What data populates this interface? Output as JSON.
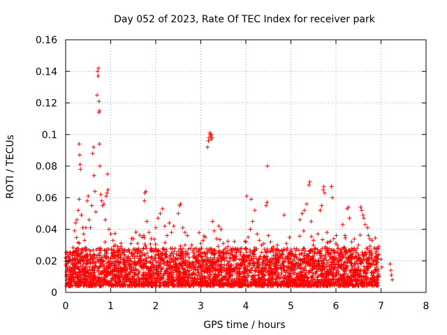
{
  "chart_data": {
    "type": "scatter",
    "title": "Day 052 of 2023, Rate Of TEC Index for receiver park",
    "xlabel": "GPS time / hours",
    "ylabel": "ROTI / TECUs",
    "xlim": [
      0,
      8
    ],
    "ylim": [
      0,
      0.16
    ],
    "xticks": [
      "0",
      "1",
      "2",
      "3",
      "4",
      "5",
      "6",
      "7",
      "8"
    ],
    "yticks": [
      "0",
      "0.02",
      "0.04",
      "0.06",
      "0.08",
      "0.1",
      "0.12",
      "0.14",
      "0.16"
    ],
    "grid": true,
    "marker": "plus",
    "color": "#ff0000",
    "x_data_range": [
      0.0,
      7.25
    ],
    "series": [
      {
        "points": [
          [
            0.05,
            0.019
          ],
          [
            0.08,
            0.014
          ],
          [
            0.1,
            0.021
          ],
          [
            0.12,
            0.013
          ],
          [
            0.15,
            0.025
          ],
          [
            0.18,
            0.016
          ],
          [
            0.2,
            0.039
          ],
          [
            0.22,
            0.044
          ],
          [
            0.25,
            0.046
          ],
          [
            0.28,
            0.052
          ],
          [
            0.3,
            0.059
          ],
          [
            0.3,
            0.094
          ],
          [
            0.31,
            0.087
          ],
          [
            0.32,
            0.081
          ],
          [
            0.33,
            0.078
          ],
          [
            0.35,
            0.049
          ],
          [
            0.38,
            0.041
          ],
          [
            0.4,
            0.037
          ],
          [
            0.42,
            0.033
          ],
          [
            0.45,
            0.041
          ],
          [
            0.48,
            0.058
          ],
          [
            0.5,
            0.061
          ],
          [
            0.52,
            0.046
          ],
          [
            0.55,
            0.041
          ],
          [
            0.58,
            0.055
          ],
          [
            0.6,
            0.088
          ],
          [
            0.62,
            0.092
          ],
          [
            0.63,
            0.074
          ],
          [
            0.65,
            0.064
          ],
          [
            0.67,
            0.051
          ],
          [
            0.7,
            0.125
          ],
          [
            0.71,
            0.14
          ],
          [
            0.72,
            0.137
          ],
          [
            0.73,
            0.142
          ],
          [
            0.74,
            0.121
          ],
          [
            0.74,
            0.114
          ],
          [
            0.75,
            0.115
          ],
          [
            0.75,
            0.094
          ],
          [
            0.76,
            0.08
          ],
          [
            0.78,
            0.062
          ],
          [
            0.8,
            0.058
          ],
          [
            0.82,
            0.055
          ],
          [
            0.85,
            0.056
          ],
          [
            0.88,
            0.046
          ],
          [
            0.9,
            0.061
          ],
          [
            0.92,
            0.063
          ],
          [
            0.93,
            0.075
          ],
          [
            0.94,
            0.065
          ],
          [
            0.96,
            0.04
          ],
          [
            1.0,
            0.037
          ],
          [
            1.05,
            0.033
          ],
          [
            1.1,
            0.03
          ],
          [
            1.15,
            0.029
          ],
          [
            1.2,
            0.026
          ],
          [
            1.3,
            0.024
          ],
          [
            1.4,
            0.027
          ],
          [
            1.45,
            0.031
          ],
          [
            1.5,
            0.034
          ],
          [
            1.6,
            0.031
          ],
          [
            1.7,
            0.035
          ],
          [
            1.75,
            0.058
          ],
          [
            1.76,
            0.063
          ],
          [
            1.78,
            0.064
          ],
          [
            1.8,
            0.045
          ],
          [
            1.85,
            0.038
          ],
          [
            1.9,
            0.034
          ],
          [
            2.0,
            0.041
          ],
          [
            2.05,
            0.047
          ],
          [
            2.1,
            0.05
          ],
          [
            2.15,
            0.053
          ],
          [
            2.2,
            0.042
          ],
          [
            2.25,
            0.036
          ],
          [
            2.3,
            0.044
          ],
          [
            2.35,
            0.038
          ],
          [
            2.4,
            0.042
          ],
          [
            2.5,
            0.05
          ],
          [
            2.53,
            0.055
          ],
          [
            2.55,
            0.056
          ],
          [
            2.6,
            0.041
          ],
          [
            2.65,
            0.038
          ],
          [
            2.7,
            0.036
          ],
          [
            2.8,
            0.03
          ],
          [
            2.9,
            0.028
          ],
          [
            3.0,
            0.031
          ],
          [
            3.05,
            0.033
          ],
          [
            3.1,
            0.035
          ],
          [
            3.15,
            0.092
          ],
          [
            3.17,
            0.096
          ],
          [
            3.18,
            0.098
          ],
          [
            3.2,
            0.101
          ],
          [
            3.21,
            0.1
          ],
          [
            3.22,
            0.099
          ],
          [
            3.23,
            0.097
          ],
          [
            3.24,
            0.1
          ],
          [
            3.25,
            0.098
          ],
          [
            3.26,
            0.045
          ],
          [
            3.3,
            0.039
          ],
          [
            3.35,
            0.034
          ],
          [
            3.4,
            0.042
          ],
          [
            3.45,
            0.04
          ],
          [
            3.5,
            0.031
          ],
          [
            3.6,
            0.029
          ],
          [
            3.7,
            0.024
          ],
          [
            3.8,
            0.027
          ],
          [
            3.9,
            0.028
          ],
          [
            4.0,
            0.032
          ],
          [
            4.02,
            0.061
          ],
          [
            4.05,
            0.035
          ],
          [
            4.1,
            0.04
          ],
          [
            4.12,
            0.059
          ],
          [
            4.15,
            0.045
          ],
          [
            4.2,
            0.052
          ],
          [
            4.25,
            0.037
          ],
          [
            4.3,
            0.033
          ],
          [
            4.35,
            0.03
          ],
          [
            4.4,
            0.031
          ],
          [
            4.45,
            0.055
          ],
          [
            4.47,
            0.057
          ],
          [
            4.48,
            0.08
          ],
          [
            4.5,
            0.036
          ],
          [
            4.55,
            0.032
          ],
          [
            4.6,
            0.028
          ],
          [
            4.7,
            0.03
          ],
          [
            4.8,
            0.026
          ],
          [
            4.85,
            0.049
          ],
          [
            4.9,
            0.031
          ],
          [
            5.0,
            0.027
          ],
          [
            5.1,
            0.024
          ],
          [
            5.2,
            0.046
          ],
          [
            5.25,
            0.05
          ],
          [
            5.3,
            0.052
          ],
          [
            5.35,
            0.056
          ],
          [
            5.4,
            0.068
          ],
          [
            5.42,
            0.07
          ],
          [
            5.45,
            0.045
          ],
          [
            5.5,
            0.033
          ],
          [
            5.6,
            0.037
          ],
          [
            5.65,
            0.052
          ],
          [
            5.68,
            0.055
          ],
          [
            5.72,
            0.065
          ],
          [
            5.73,
            0.067
          ],
          [
            5.75,
            0.063
          ],
          [
            5.8,
            0.038
          ],
          [
            5.85,
            0.032
          ],
          [
            5.9,
            0.067
          ],
          [
            5.92,
            0.06
          ],
          [
            5.95,
            0.034
          ],
          [
            6.0,
            0.031
          ],
          [
            6.05,
            0.028
          ],
          [
            6.1,
            0.024
          ],
          [
            6.15,
            0.043
          ],
          [
            6.2,
            0.036
          ],
          [
            6.25,
            0.053
          ],
          [
            6.28,
            0.054
          ],
          [
            6.3,
            0.047
          ],
          [
            6.35,
            0.032
          ],
          [
            6.4,
            0.028
          ],
          [
            6.5,
            0.03
          ],
          [
            6.55,
            0.054
          ],
          [
            6.57,
            0.052
          ],
          [
            6.6,
            0.049
          ],
          [
            6.62,
            0.047
          ],
          [
            6.65,
            0.043
          ],
          [
            6.7,
            0.041
          ],
          [
            6.72,
            0.036
          ],
          [
            6.75,
            0.034
          ],
          [
            6.8,
            0.033
          ],
          [
            6.85,
            0.028
          ],
          [
            6.9,
            0.026
          ],
          [
            6.95,
            0.024
          ],
          [
            7.0,
            0.021
          ],
          [
            7.02,
            0.016
          ],
          [
            7.2,
            0.018
          ],
          [
            7.22,
            0.014
          ],
          [
            7.23,
            0.011
          ],
          [
            7.25,
            0.008
          ]
        ]
      }
    ]
  }
}
